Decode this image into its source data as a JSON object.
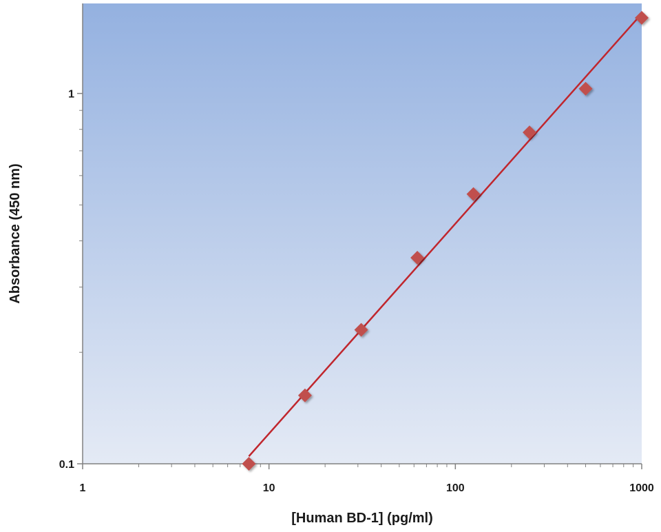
{
  "chart_data": {
    "type": "scatter",
    "title": "",
    "xlabel": "[Human BD-1] (pg/ml)",
    "ylabel": "Absorbance (450 nm)",
    "x_scale": "log",
    "y_scale": "log",
    "xlim": [
      1,
      1000
    ],
    "ylim": [
      0.1,
      1.75
    ],
    "x_ticks": [
      "1",
      "10",
      "100",
      "1000"
    ],
    "y_ticks": [
      "0.1",
      "1"
    ],
    "grid": false,
    "legend": "none",
    "background_gradient": [
      "#94b1e0",
      "#e4eaf5"
    ],
    "series": [
      {
        "marker": "diamond",
        "marker_color": "#c0504d",
        "line_color": "#c0262d",
        "fit_line": true,
        "x": [
          7.8,
          15.6,
          31.25,
          62.5,
          125,
          250,
          500,
          1000
        ],
        "y": [
          0.1,
          0.153,
          0.23,
          0.36,
          0.535,
          0.785,
          1.03,
          1.6
        ]
      }
    ]
  }
}
